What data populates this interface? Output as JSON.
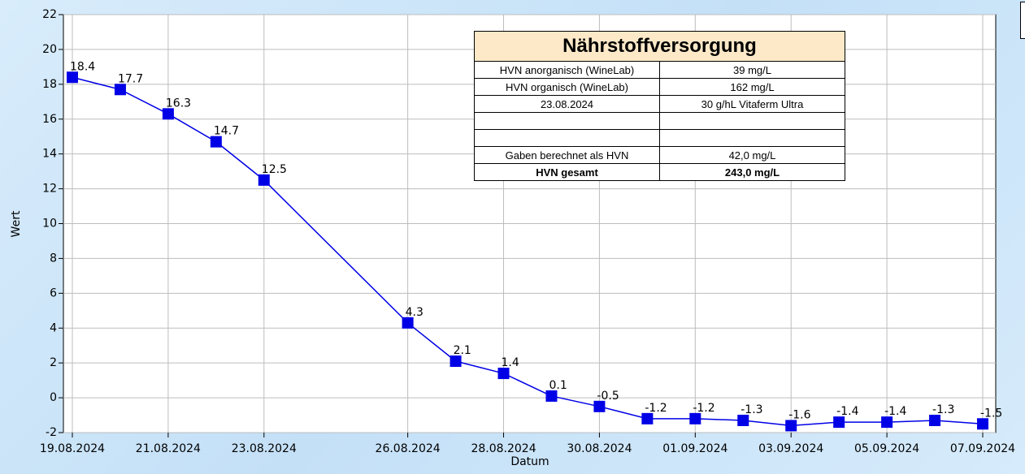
{
  "chart_data": {
    "type": "line",
    "xlabel": "Datum",
    "ylabel": "Wert",
    "color": "#0000e6",
    "x": [
      "2024-08-19",
      "2024-08-20",
      "2024-08-21",
      "2024-08-22",
      "2024-08-23",
      "2024-08-26",
      "2024-08-27",
      "2024-08-28",
      "2024-08-29",
      "2024-08-30",
      "2024-08-31",
      "2024-09-01",
      "2024-09-02",
      "2024-09-03",
      "2024-09-04",
      "2024-09-05",
      "2024-09-06",
      "2024-09-07"
    ],
    "values": [
      18.4,
      17.7,
      16.3,
      14.7,
      12.5,
      4.3,
      2.1,
      1.4,
      0.1,
      -0.5,
      -1.2,
      -1.2,
      -1.3,
      -1.6,
      -1.4,
      -1.4,
      -1.3,
      -1.5
    ],
    "xlim": [
      "2024-08-19",
      "2024-09-07"
    ],
    "xticks": [
      {
        "value": "2024-08-19",
        "label": "19.08.2024"
      },
      {
        "value": "2024-08-21",
        "label": "21.08.2024"
      },
      {
        "value": "2024-08-23",
        "label": "23.08.2024"
      },
      {
        "value": "2024-08-26",
        "label": "26.08.2024"
      },
      {
        "value": "2024-08-28",
        "label": "28.08.2024"
      },
      {
        "value": "2024-08-30",
        "label": "30.08.2024"
      },
      {
        "value": "2024-09-01",
        "label": "01.09.2024"
      },
      {
        "value": "2024-09-03",
        "label": "03.09.2024"
      },
      {
        "value": "2024-09-05",
        "label": "05.09.2024"
      },
      {
        "value": "2024-09-07",
        "label": "07.09.2024"
      }
    ],
    "ylim": [
      -2,
      22
    ],
    "yticks": [
      -2,
      0,
      2,
      4,
      6,
      8,
      10,
      12,
      14,
      16,
      18,
      20,
      22
    ],
    "grid": true
  },
  "table": {
    "title": "Nährstoffversorgung",
    "rows": [
      [
        "HVN anorganisch (WineLab)",
        "39 mg/L"
      ],
      [
        "HVN organisch (WineLab)",
        "162 mg/L"
      ],
      [
        "23.08.2024",
        "30 g/hL Vitaferm Ultra"
      ],
      [
        "",
        ""
      ],
      [
        "",
        ""
      ],
      [
        "Gaben berechnet als HVN",
        "42,0 mg/L"
      ],
      [
        "HVN gesamt",
        "243,0 mg/L"
      ]
    ]
  }
}
